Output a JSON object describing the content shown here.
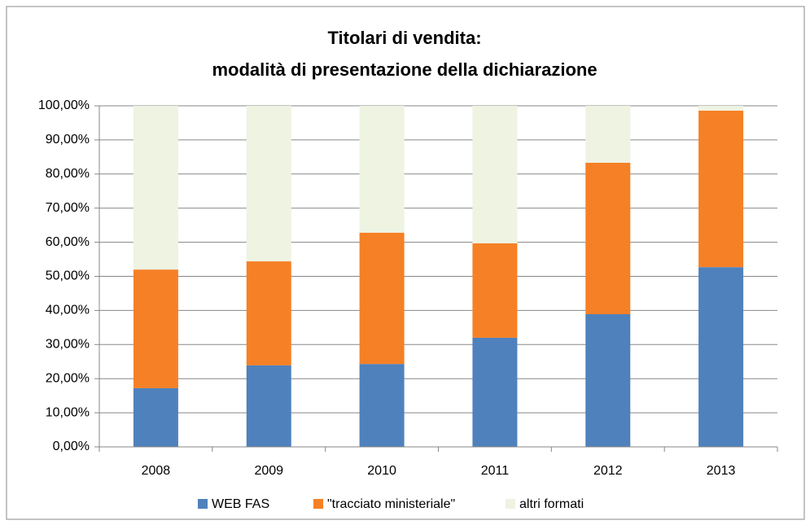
{
  "chart_data": {
    "type": "stacked_bar",
    "title": [
      "Titolari di vendita:",
      "modalità di presentazione della dichiarazione"
    ],
    "categories": [
      "2008",
      "2009",
      "2010",
      "2011",
      "2012",
      "2013"
    ],
    "series": [
      {
        "name": "WEB FAS",
        "color": "#4f81bd",
        "values": [
          17.2,
          23.9,
          24.3,
          32.0,
          38.9,
          52.7
        ]
      },
      {
        "name": "\"tracciato ministeriale\"",
        "color": "#f68026",
        "values": [
          34.8,
          30.5,
          38.5,
          27.7,
          44.4,
          45.9
        ]
      },
      {
        "name": "altri formati",
        "color": "#eef3e2",
        "values": [
          48.0,
          45.6,
          37.2,
          40.3,
          16.7,
          1.4
        ]
      }
    ],
    "ylim": [
      0,
      100
    ],
    "yticks": [
      {
        "value": 0,
        "label": "0,00%"
      },
      {
        "value": 10,
        "label": "10,00%"
      },
      {
        "value": 20,
        "label": "20,00%"
      },
      {
        "value": 30,
        "label": "30,00%"
      },
      {
        "value": 40,
        "label": "40,00%"
      },
      {
        "value": 50,
        "label": "50,00%"
      },
      {
        "value": 60,
        "label": "60,00%"
      },
      {
        "value": 70,
        "label": "70,00%"
      },
      {
        "value": 80,
        "label": "80,00%"
      },
      {
        "value": 90,
        "label": "90,00%"
      },
      {
        "value": 100,
        "label": "100,00%"
      }
    ],
    "grid": true,
    "legend": "bottom"
  }
}
